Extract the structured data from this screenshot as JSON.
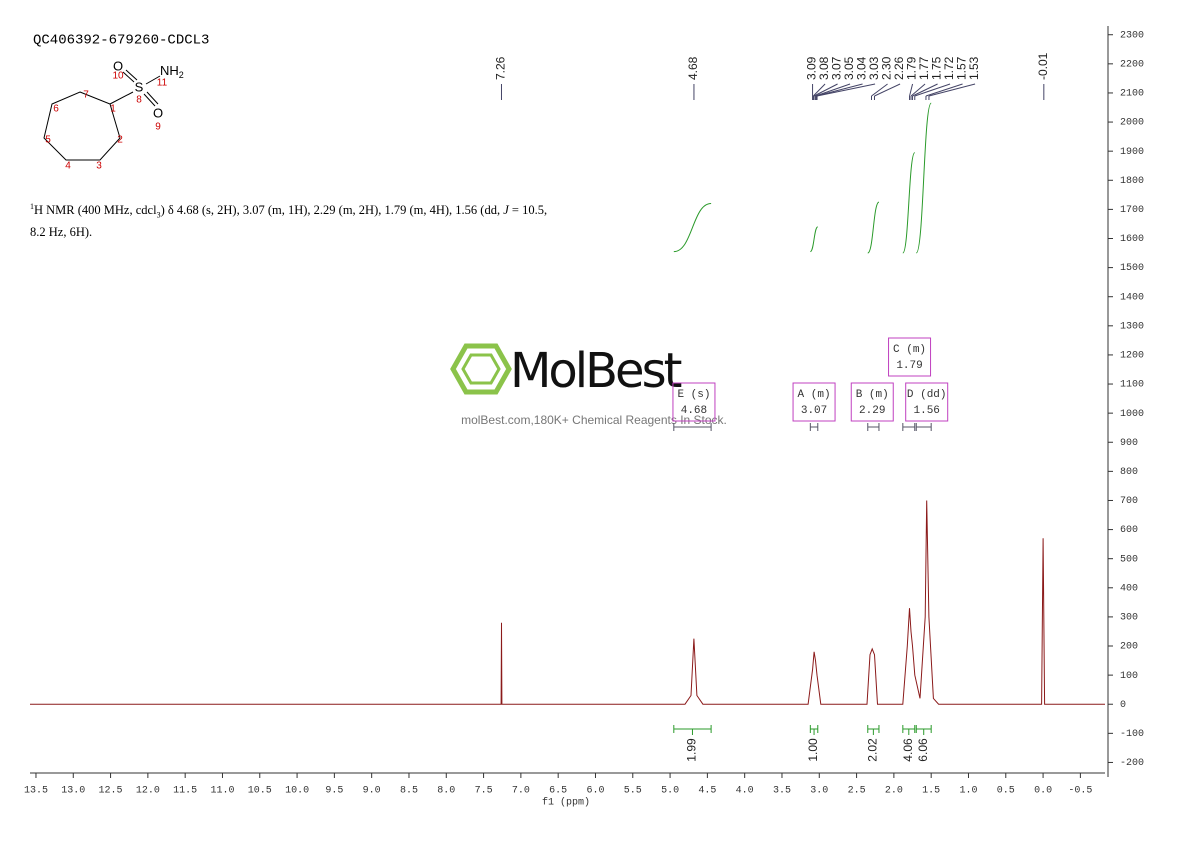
{
  "chart_data": {
    "type": "nmr",
    "title": "QC406392-679260-CDCL3",
    "x_label": "f1 (ppm)",
    "xlim": [
      13.58,
      -0.83
    ],
    "xticks": [
      13.5,
      {
        "value": 13,
        "label": "13.0"
      },
      12.5,
      {
        "value": 12,
        "label": "12.0"
      },
      11.5,
      {
        "value": 11,
        "label": "11.0"
      },
      10.5,
      {
        "value": 10,
        "label": "10.0"
      },
      9.5,
      {
        "value": 9,
        "label": "9.0"
      },
      8.5,
      {
        "value": 8,
        "label": "8.0"
      },
      7.5,
      {
        "value": 7,
        "label": "7.0"
      },
      6.5,
      {
        "value": 6,
        "label": "6.0"
      },
      5.5,
      {
        "value": 5,
        "label": "5.0"
      },
      4.5,
      {
        "value": 4,
        "label": "4.0"
      },
      3.5,
      {
        "value": 3,
        "label": "3.0"
      },
      2.5,
      {
        "value": 2,
        "label": "2.0"
      },
      1.5,
      {
        "value": 1,
        "label": "1.0"
      },
      0.5,
      {
        "value": 0,
        "label": "0.0"
      },
      -0.5
    ],
    "ylim": [
      -250,
      2330
    ],
    "yticks": [
      -200,
      -100,
      0,
      100,
      200,
      300,
      400,
      500,
      600,
      700,
      800,
      900,
      1000,
      1100,
      1200,
      1300,
      1400,
      1500,
      1600,
      1700,
      1800,
      1900,
      2000,
      2100,
      2200,
      2300
    ],
    "spectrum": {
      "color": "#8b1a1a",
      "x": [
        13.58,
        7.3,
        7.265,
        7.26,
        7.255,
        4.8,
        4.72,
        4.68,
        4.64,
        4.56,
        3.15,
        3.09,
        3.07,
        3.05,
        3.03,
        2.98,
        2.36,
        2.32,
        2.29,
        2.26,
        2.22,
        1.88,
        1.82,
        1.79,
        1.77,
        1.75,
        1.72,
        1.65,
        1.58,
        1.56,
        1.53,
        1.47,
        1.4,
        0.02,
        0,
        -0.02,
        -0.83
      ],
      "values": [
        0,
        0,
        0,
        280,
        0,
        0,
        30,
        225,
        30,
        0,
        0,
        120,
        180,
        150,
        100,
        0,
        0,
        170,
        190,
        170,
        0,
        0,
        200,
        330,
        250,
        200,
        100,
        20,
        300,
        700,
        300,
        20,
        0,
        0,
        570,
        0,
        0
      ]
    },
    "peak_labels": [
      7.26,
      4.68,
      3.09,
      3.08,
      3.07,
      3.05,
      3.04,
      3.03,
      {
        "value": 2.3,
        "label": "2.30"
      },
      2.26,
      1.79,
      1.77,
      1.75,
      1.72,
      1.57,
      1.53,
      -0.01
    ],
    "integral_color": "#2a9a2a",
    "integrals": [
      {
        "value": 1.99,
        "range": [
          4.95,
          4.45
        ],
        "curve": [
          1555,
          1720
        ]
      },
      {
        "value": {
          "value": 1,
          "label": "1.00"
        },
        "range": [
          3.12,
          3.02
        ],
        "curve": [
          1555,
          1640
        ]
      },
      {
        "value": 2.02,
        "range": [
          2.35,
          2.2
        ],
        "curve": [
          1550,
          1725
        ]
      },
      {
        "value": 4.06,
        "range": [
          1.88,
          1.72
        ],
        "curve": [
          1550,
          1895
        ]
      },
      {
        "value": 6.06,
        "range": [
          1.7,
          1.5
        ],
        "curve": [
          1550,
          2065
        ]
      }
    ],
    "multiplets": [
      {
        "label": "E (s)",
        "shift": 4.68,
        "range": [
          4.95,
          4.45
        ]
      },
      {
        "label": "A (m)",
        "shift": 3.07,
        "range": [
          3.12,
          3.02
        ]
      },
      {
        "label": "B (m)",
        "shift": 2.29,
        "range": [
          2.35,
          2.2
        ]
      },
      {
        "label": "D (dd)",
        "shift": 1.56,
        "range": [
          1.7,
          1.5
        ]
      },
      {
        "label": "C (m)",
        "shift": 1.79,
        "range": [
          1.88,
          1.72
        ]
      }
    ]
  },
  "molecule": {
    "atoms": [
      "O",
      "S",
      "O"
    ],
    "amine": {
      "label": "NH",
      "sub": "2"
    },
    "numbers": [
      "1",
      "2",
      "3",
      "4",
      "5",
      "6",
      "7",
      "8",
      "9",
      "10",
      "11"
    ]
  },
  "description": {
    "line1": [
      "1",
      "H NMR (400 MHz, cdcl",
      "3",
      ") δ 4.68 (s, 2H), 3.07 (m, 1H), 2.29 (m, 2H), 1.79 (m, 4H), 1.56 (dd, ",
      "J",
      " = 10.5,"
    ],
    "line2": "8.2 Hz, 6H)."
  },
  "watermark": {
    "brand": "MolBest",
    "tagline": "molBest.com,180K+ Chemical Reagents In Stock."
  }
}
